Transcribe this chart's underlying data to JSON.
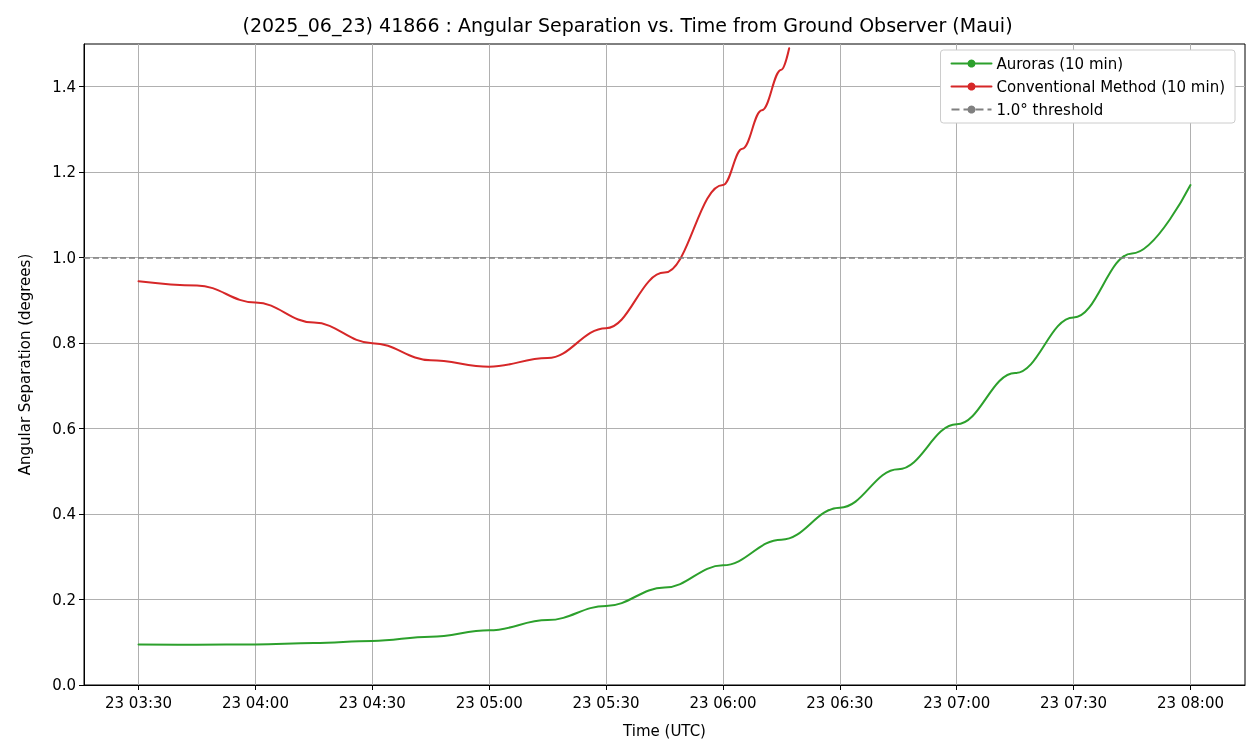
{
  "chart_data": {
    "type": "line",
    "title": "(2025_06_23) 41866 : Angular Separation vs. Time from Ground Observer (Maui)",
    "xlabel": "Time (UTC)",
    "ylabel": "Angular Separation (degrees)",
    "series": [
      {
        "name": "Auroras (10 min)",
        "color": "#2ca02c",
        "x": [
          "2025-06-23T03:30",
          "2025-06-23T03:45",
          "2025-06-23T04:00",
          "2025-06-23T04:15",
          "2025-06-23T04:30",
          "2025-06-23T04:45",
          "2025-06-23T05:00",
          "2025-06-23T05:15",
          "2025-06-23T05:30",
          "2025-06-23T05:45",
          "2025-06-23T06:00",
          "2025-06-23T06:15",
          "2025-06-23T06:30",
          "2025-06-23T06:45",
          "2025-06-23T07:00",
          "2025-06-23T07:15",
          "2025-06-23T07:30",
          "2025-06-23T07:45",
          "2025-06-23T08:00"
        ],
        "values": [
          0.095,
          0.094,
          0.095,
          0.098,
          0.103,
          0.113,
          0.128,
          0.152,
          0.185,
          0.228,
          0.28,
          0.34,
          0.415,
          0.505,
          0.61,
          0.73,
          0.86,
          1.01,
          1.17
        ]
      },
      {
        "name": "Conventional Method (10 min)",
        "color": "#d62728",
        "x": [
          "2025-06-23T03:30",
          "2025-06-23T03:45",
          "2025-06-23T04:00",
          "2025-06-23T04:15",
          "2025-06-23T04:30",
          "2025-06-23T04:45",
          "2025-06-23T05:00",
          "2025-06-23T05:15",
          "2025-06-23T05:30",
          "2025-06-23T05:45",
          "2025-06-23T06:00",
          "2025-06-23T06:05",
          "2025-06-23T06:10",
          "2025-06-23T06:15",
          "2025-06-23T06:17"
        ],
        "values": [
          0.945,
          0.935,
          0.895,
          0.848,
          0.8,
          0.76,
          0.745,
          0.765,
          0.835,
          0.965,
          1.17,
          1.255,
          1.345,
          1.44,
          1.49
        ]
      }
    ],
    "ref_lines": [
      {
        "axis": "y",
        "value": 1.0,
        "label": "1.0° threshold",
        "color": "#808080",
        "line_style": "dashed"
      }
    ],
    "xlim": [
      "2025-06-23T03:16",
      "2025-06-23T08:14"
    ],
    "xticks": [
      {
        "value": "2025-06-23T03:30",
        "label": "23 03:30"
      },
      {
        "value": "2025-06-23T04:00",
        "label": "23 04:00"
      },
      {
        "value": "2025-06-23T04:30",
        "label": "23 04:30"
      },
      {
        "value": "2025-06-23T05:00",
        "label": "23 05:00"
      },
      {
        "value": "2025-06-23T05:30",
        "label": "23 05:30"
      },
      {
        "value": "2025-06-23T06:00",
        "label": "23 06:00"
      },
      {
        "value": "2025-06-23T06:30",
        "label": "23 06:30"
      },
      {
        "value": "2025-06-23T07:00",
        "label": "23 07:00"
      },
      {
        "value": "2025-06-23T07:30",
        "label": "23 07:30"
      },
      {
        "value": "2025-06-23T08:00",
        "label": "23 08:00"
      }
    ],
    "ylim": [
      0,
      1.5
    ],
    "yticks": [
      {
        "value": 0,
        "label": "0.0"
      },
      {
        "value": 0.2,
        "label": "0.2"
      },
      {
        "value": 0.4,
        "label": "0.4"
      },
      {
        "value": 0.6,
        "label": "0.6"
      },
      {
        "value": 0.8,
        "label": "0.8"
      },
      {
        "value": 1.0,
        "label": "1.0"
      },
      {
        "value": 1.2,
        "label": "1.2"
      },
      {
        "value": 1.4,
        "label": "1.4"
      }
    ],
    "grid": true,
    "legend": "top right",
    "marker": "none",
    "line_style": "solid"
  }
}
